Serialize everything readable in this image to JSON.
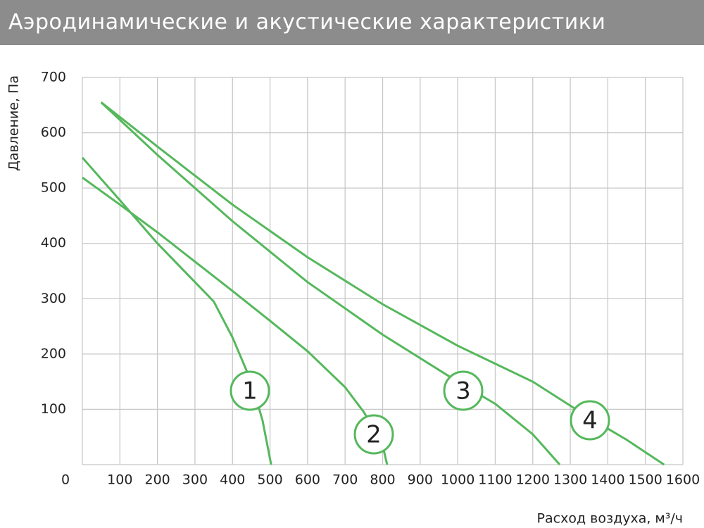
{
  "chart_data": {
    "type": "line",
    "title": "Аэродинамические и акустические характеристики",
    "y_label": "Давление, Па",
    "x_label": "Расход воздуха, м³/ч",
    "xlim": [
      0,
      1600
    ],
    "ylim": [
      0,
      700
    ],
    "xticks": [
      0,
      100,
      200,
      300,
      400,
      500,
      600,
      700,
      800,
      900,
      1000,
      1100,
      1200,
      1300,
      1400,
      1500,
      1600
    ],
    "yticks": [
      100,
      200,
      300,
      400,
      500,
      600,
      700
    ],
    "grid": true,
    "series": [
      {
        "name": "1",
        "color": "#55b85c",
        "x": [
          0,
          100,
          200,
          300,
          350,
          400,
          450,
          480,
          503
        ],
        "values": [
          555,
          478,
          400,
          330,
          295,
          230,
          150,
          80,
          0
        ]
      },
      {
        "name": "2",
        "color": "#55b85c",
        "x": [
          0,
          100,
          200,
          300,
          400,
          500,
          600,
          700,
          750,
          800,
          812
        ],
        "values": [
          519,
          470,
          420,
          367,
          314,
          260,
          205,
          140,
          95,
          35,
          0
        ]
      },
      {
        "name": "3",
        "color": "#55b85c",
        "x": [
          50,
          200,
          400,
          600,
          800,
          1000,
          1100,
          1200,
          1272
        ],
        "values": [
          655,
          560,
          440,
          330,
          235,
          150,
          110,
          55,
          0
        ]
      },
      {
        "name": "4",
        "color": "#55b85c",
        "x": [
          50,
          200,
          400,
          600,
          800,
          1000,
          1200,
          1350,
          1450,
          1550
        ],
        "values": [
          655,
          575,
          470,
          375,
          290,
          215,
          150,
          85,
          45,
          0
        ]
      }
    ]
  }
}
